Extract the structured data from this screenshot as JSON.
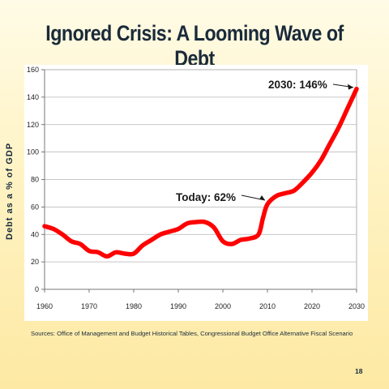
{
  "slide": {
    "title": "Ignored Crisis: A Looming Wave of Debt",
    "sources": "Sources: Office of Management and Budget Historical Tables, Congressional Budget Office Alternative Fiscal Scenario",
    "page_number": "18"
  },
  "chart_data": {
    "type": "line",
    "title": "",
    "xlabel": "",
    "ylabel": "Debt as a % of GDP",
    "xlim": [
      1960,
      2030
    ],
    "ylim": [
      0,
      160
    ],
    "x_ticks": [
      1960,
      1970,
      1980,
      1990,
      2000,
      2010,
      2020,
      2030
    ],
    "y_ticks": [
      0,
      20,
      40,
      60,
      80,
      100,
      120,
      140,
      160
    ],
    "grid": "horizontal",
    "legend": "none",
    "series": [
      {
        "color": "#ff0000",
        "x": [
          1960,
          1962,
          1964,
          1966,
          1968,
          1970,
          1972,
          1974,
          1976,
          1978,
          1980,
          1982,
          1984,
          1986,
          1988,
          1990,
          1992,
          1994,
          1996,
          1998,
          2000,
          2002,
          2004,
          2006,
          2008,
          2009,
          2010,
          2012,
          2014,
          2016,
          2018,
          2020,
          2022,
          2024,
          2026,
          2028,
          2030
        ],
        "values": [
          46,
          44,
          40,
          35,
          33,
          28,
          27,
          24,
          27,
          26,
          26,
          32,
          36,
          40,
          42,
          44,
          48,
          49,
          49,
          45,
          35,
          33,
          36,
          37,
          40,
          52,
          62,
          68,
          70,
          72,
          78,
          85,
          94,
          106,
          118,
          132,
          146
        ]
      }
    ],
    "annotations": [
      {
        "text": "2030: 146%",
        "x": 2030,
        "y": 146
      },
      {
        "text": "Today: 62%",
        "x": 2010,
        "y": 62
      }
    ]
  }
}
